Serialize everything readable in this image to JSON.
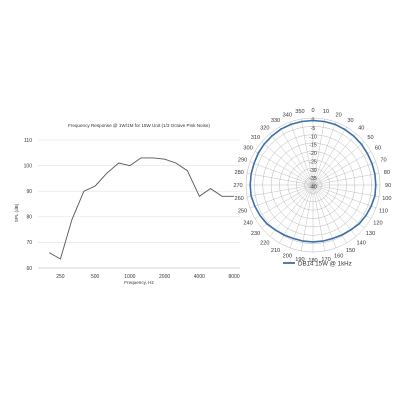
{
  "colors": {
    "background": "#ffffff",
    "grid": "#e2e2e2",
    "axis": "#bbbbbb",
    "freq_line": "#555555",
    "polar_grid": "#b8b8b8",
    "polar_line": "#3b6fa4"
  },
  "chart_data": [
    {
      "type": "line",
      "title": "Frequency Response @ 1W/1M for 15W Unit (1/3 Octave Pink Noise)",
      "xlabel": "Frequency, Hz",
      "ylabel": "SPL (dB)",
      "x_scale": "log2",
      "x_ticks": [
        250,
        500,
        1000,
        2000,
        4000,
        8000
      ],
      "x_tick_labels": [
        "250",
        "500",
        "1000",
        "2000",
        "4000",
        "8000"
      ],
      "xlim": [
        160,
        9000
      ],
      "y_ticks": [
        60,
        70,
        80,
        90,
        100,
        110
      ],
      "y_tick_labels": [
        "60",
        "70",
        "80",
        "90",
        "100",
        "110"
      ],
      "ylim": [
        60,
        110
      ],
      "grid": "horizontal",
      "series": [
        {
          "x": [
            200,
            250,
            315,
            400,
            500,
            630,
            800,
            1000,
            1250,
            1600,
            2000,
            2500,
            3150,
            4000,
            5000,
            6300,
            8000
          ],
          "y": [
            66,
            63.5,
            79,
            90,
            92,
            97,
            101,
            100,
            103,
            103,
            102.5,
            101,
            98,
            88,
            91,
            88,
            88
          ]
        }
      ]
    },
    {
      "type": "polar",
      "angle_labels": [
        "350",
        "0",
        "10",
        "20",
        "30",
        "40",
        "50",
        "60",
        "70",
        "80",
        "90",
        "100",
        "110",
        "120",
        "130",
        "140",
        "150",
        "160",
        "170",
        "180",
        "190",
        "200",
        "210",
        "220",
        "230",
        "240",
        "250",
        "260",
        "270",
        "280",
        "290",
        "300",
        "310",
        "320",
        "330",
        "340"
      ],
      "angles_deg": [
        350,
        0,
        10,
        20,
        30,
        40,
        50,
        60,
        70,
        80,
        90,
        100,
        110,
        120,
        130,
        140,
        150,
        160,
        170,
        180,
        190,
        200,
        210,
        220,
        230,
        240,
        250,
        260,
        270,
        280,
        290,
        300,
        310,
        320,
        330,
        340
      ],
      "radial_ticks": [
        0,
        -5,
        -10,
        -15,
        -20,
        -25,
        -30,
        -35,
        -40
      ],
      "radial_tick_labels": [
        "0",
        "-5",
        "-10",
        "-15",
        "-20",
        "-25",
        "-30",
        "-35",
        "-40"
      ],
      "rlim": [
        -40,
        0
      ],
      "legend_position": "bottom",
      "series": [
        {
          "name": "DB14 15W @ 1kHz",
          "angles_deg": [
            0,
            10,
            20,
            30,
            40,
            50,
            60,
            70,
            80,
            90,
            100,
            110,
            120,
            130,
            140,
            150,
            160,
            170,
            180,
            190,
            200,
            210,
            220,
            230,
            240,
            250,
            260,
            270,
            280,
            290,
            300,
            310,
            320,
            330,
            340,
            350
          ],
          "values": [
            -1.5,
            -1.5,
            -1.5,
            -1.8,
            -2,
            -2.2,
            -2.5,
            -2.5,
            -2.5,
            -2.5,
            -2.5,
            -3,
            -3.5,
            -4,
            -5,
            -5.5,
            -6,
            -6,
            -6,
            -6,
            -6,
            -5.5,
            -5,
            -4,
            -3.5,
            -3,
            -2.5,
            -2.5,
            -2.5,
            -2.5,
            -2.2,
            -2,
            -1.8,
            -1.5,
            -1.5,
            -1.5
          ]
        }
      ]
    }
  ]
}
